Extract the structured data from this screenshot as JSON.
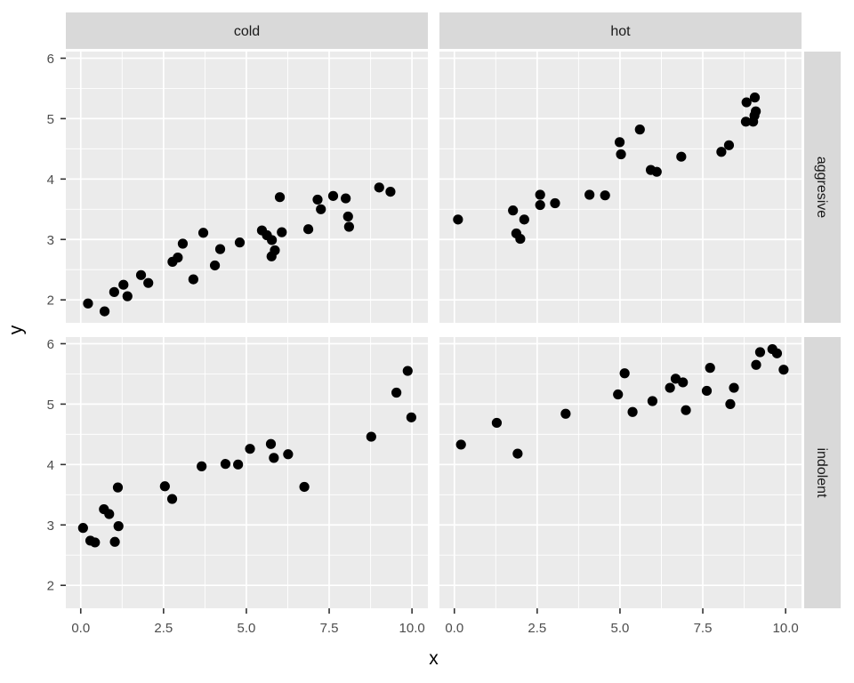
{
  "chart_data": {
    "type": "scatter",
    "title": "",
    "xlabel": "x",
    "ylabel": "y",
    "legend": "none",
    "grid": "on",
    "x_tick_labels": [
      "0.0",
      "2.5",
      "5.0",
      "7.5",
      "10.0"
    ],
    "x_tick_values": [
      0,
      2.5,
      5,
      7.5,
      10
    ],
    "y_tick_labels": [
      "2",
      "3",
      "4",
      "5",
      "6"
    ],
    "y_tick_values": [
      2,
      3,
      4,
      5,
      6
    ],
    "x_minor_gridlines": [
      1.25,
      3.75,
      6.25,
      8.75
    ],
    "y_minor_gridlines": [
      2.5,
      3.5,
      4.5,
      5.5
    ],
    "xlim": [
      -0.45,
      10.48
    ],
    "ylim": [
      1.62,
      6.11
    ],
    "facet": {
      "col_labels": [
        "cold",
        "hot"
      ],
      "row_labels": [
        "aggresive",
        "indolent"
      ]
    },
    "panels": [
      {
        "col": "cold",
        "row": "aggresive",
        "points": [
          [
            0.22,
            1.94
          ],
          [
            0.72,
            1.81
          ],
          [
            1.01,
            2.13
          ],
          [
            1.29,
            2.25
          ],
          [
            1.41,
            2.06
          ],
          [
            1.82,
            2.41
          ],
          [
            2.04,
            2.28
          ],
          [
            2.77,
            2.63
          ],
          [
            2.93,
            2.7
          ],
          [
            3.08,
            2.93
          ],
          [
            3.4,
            2.34
          ],
          [
            3.7,
            3.11
          ],
          [
            4.05,
            2.57
          ],
          [
            4.21,
            2.84
          ],
          [
            4.8,
            2.95
          ],
          [
            5.47,
            3.15
          ],
          [
            5.62,
            3.07
          ],
          [
            5.77,
            2.99
          ],
          [
            5.86,
            2.82
          ],
          [
            5.76,
            2.72
          ],
          [
            6.07,
            3.12
          ],
          [
            6.01,
            3.7
          ],
          [
            6.87,
            3.17
          ],
          [
            7.15,
            3.66
          ],
          [
            7.25,
            3.5
          ],
          [
            7.62,
            3.72
          ],
          [
            8.0,
            3.68
          ],
          [
            8.07,
            3.38
          ],
          [
            8.1,
            3.21
          ],
          [
            9.01,
            3.86
          ],
          [
            9.35,
            3.79
          ]
        ]
      },
      {
        "col": "hot",
        "row": "aggresive",
        "points": [
          [
            0.11,
            3.33
          ],
          [
            1.77,
            3.48
          ],
          [
            1.87,
            3.1
          ],
          [
            1.99,
            3.01
          ],
          [
            2.11,
            3.33
          ],
          [
            2.59,
            3.74
          ],
          [
            2.59,
            3.57
          ],
          [
            3.04,
            3.6
          ],
          [
            4.08,
            3.74
          ],
          [
            4.55,
            3.73
          ],
          [
            4.99,
            4.61
          ],
          [
            5.03,
            4.41
          ],
          [
            5.6,
            4.82
          ],
          [
            5.93,
            4.15
          ],
          [
            6.11,
            4.12
          ],
          [
            6.85,
            4.37
          ],
          [
            8.06,
            4.45
          ],
          [
            8.29,
            4.56
          ],
          [
            8.8,
            4.95
          ],
          [
            9.02,
            4.95
          ],
          [
            9.06,
            5.05
          ],
          [
            9.1,
            5.12
          ],
          [
            8.82,
            5.27
          ],
          [
            9.07,
            5.35
          ]
        ]
      },
      {
        "col": "cold",
        "row": "indolent",
        "points": [
          [
            0.07,
            2.95
          ],
          [
            0.29,
            2.74
          ],
          [
            0.43,
            2.71
          ],
          [
            0.7,
            3.26
          ],
          [
            0.86,
            3.18
          ],
          [
            1.03,
            2.72
          ],
          [
            1.12,
            3.62
          ],
          [
            1.14,
            2.98
          ],
          [
            2.54,
            3.64
          ],
          [
            2.76,
            3.43
          ],
          [
            3.65,
            3.97
          ],
          [
            4.37,
            4.01
          ],
          [
            4.75,
            4.0
          ],
          [
            5.11,
            4.26
          ],
          [
            5.74,
            4.34
          ],
          [
            5.83,
            4.11
          ],
          [
            6.26,
            4.17
          ],
          [
            6.75,
            3.63
          ],
          [
            8.77,
            4.46
          ],
          [
            9.53,
            5.19
          ],
          [
            9.87,
            5.55
          ],
          [
            9.98,
            4.78
          ]
        ]
      },
      {
        "col": "hot",
        "row": "indolent",
        "points": [
          [
            0.2,
            4.33
          ],
          [
            1.28,
            4.69
          ],
          [
            1.91,
            4.18
          ],
          [
            3.36,
            4.84
          ],
          [
            4.94,
            5.16
          ],
          [
            5.14,
            5.51
          ],
          [
            5.38,
            4.87
          ],
          [
            5.98,
            5.05
          ],
          [
            6.51,
            5.27
          ],
          [
            6.68,
            5.42
          ],
          [
            6.9,
            5.36
          ],
          [
            6.99,
            4.9
          ],
          [
            7.62,
            5.22
          ],
          [
            7.72,
            5.6
          ],
          [
            8.33,
            5.0
          ],
          [
            8.44,
            5.27
          ],
          [
            9.11,
            5.65
          ],
          [
            9.23,
            5.86
          ],
          [
            9.6,
            5.91
          ],
          [
            9.74,
            5.84
          ],
          [
            9.94,
            5.57
          ]
        ]
      }
    ],
    "colors": {
      "point": "#000000",
      "panel_background": "#EBEBEB",
      "strip_background": "#D9D9D9",
      "strip_text": "#1A1A1A",
      "gridline": "#FFFFFF",
      "tick_mark": "#333333",
      "tick_label": "#4D4D4D",
      "figure_background": "#FFFFFF"
    },
    "point_radius": 5.6
  }
}
